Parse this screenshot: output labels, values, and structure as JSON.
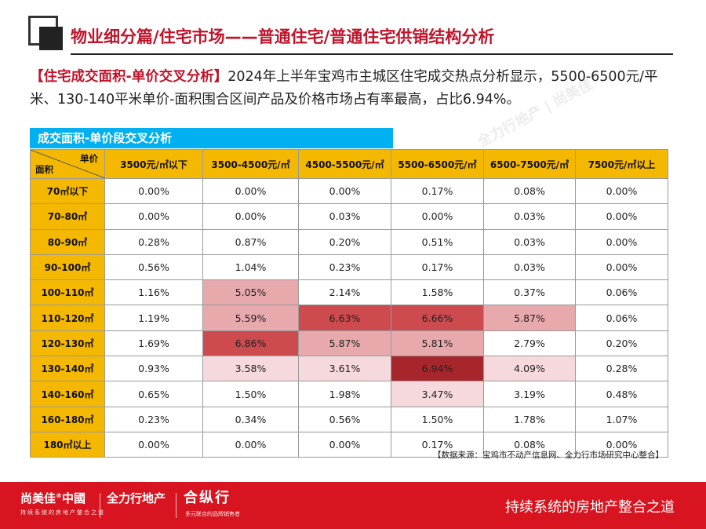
{
  "header": {
    "title": "物业细分篇/住宅市场——普通住宅/普通住宅供销结构分析"
  },
  "intro": {
    "tag": "【住宅成交面积-单价交叉分析】",
    "text": "2024年上半年宝鸡市主城区住宅成交热点分析显示，5500-6500元/平米、130-140平米单价-面积围合区间产品及价格市场占有率最高，占比6.94%。"
  },
  "table": {
    "banner": "成交面积-单价段交叉分析",
    "corner_top": "单价",
    "corner_bottom": "面积",
    "columns": [
      "3500元/㎡以下",
      "3500-4500元/㎡",
      "4500-5500元/㎡",
      "5500-6500元/㎡",
      "6500-7500元/㎡",
      "7500元/㎡以上"
    ],
    "rows": [
      {
        "label": "70㎡以下",
        "values": [
          "0.00%",
          "0.00%",
          "0.00%",
          "0.17%",
          "0.08%",
          "0.00%"
        ]
      },
      {
        "label": "70-80㎡",
        "values": [
          "0.00%",
          "0.00%",
          "0.03%",
          "0.00%",
          "0.03%",
          "0.00%"
        ]
      },
      {
        "label": "80-90㎡",
        "values": [
          "0.28%",
          "0.87%",
          "0.20%",
          "0.51%",
          "0.03%",
          "0.00%"
        ]
      },
      {
        "label": "90-100㎡",
        "values": [
          "0.56%",
          "1.04%",
          "0.23%",
          "0.17%",
          "0.03%",
          "0.00%"
        ]
      },
      {
        "label": "100-110㎡",
        "values": [
          "1.16%",
          "5.05%",
          "2.14%",
          "1.58%",
          "0.37%",
          "0.06%"
        ]
      },
      {
        "label": "110-120㎡",
        "values": [
          "1.19%",
          "5.59%",
          "6.63%",
          "6.66%",
          "5.87%",
          "0.06%"
        ]
      },
      {
        "label": "120-130㎡",
        "values": [
          "1.69%",
          "6.86%",
          "5.87%",
          "5.81%",
          "2.79%",
          "0.20%"
        ]
      },
      {
        "label": "130-140㎡",
        "values": [
          "0.93%",
          "3.58%",
          "3.61%",
          "6.94%",
          "4.09%",
          "0.28%"
        ]
      },
      {
        "label": "140-160㎡",
        "values": [
          "0.65%",
          "1.50%",
          "1.98%",
          "3.47%",
          "3.19%",
          "0.48%"
        ]
      },
      {
        "label": "160-180㎡",
        "values": [
          "0.23%",
          "0.34%",
          "0.56%",
          "1.50%",
          "1.78%",
          "1.07%"
        ]
      },
      {
        "label": "180㎡以上",
        "values": [
          "0.00%",
          "0.00%",
          "0.00%",
          "0.17%",
          "0.08%",
          "0.00%"
        ]
      }
    ],
    "highlight_colors": {
      "light": "#f6d9dc",
      "medium": "#e8a9ad",
      "strong": "#cd4a4f",
      "darkest": "#a7262c"
    }
  },
  "source": "【数据来源：宝鸡市不动产信息网、全力行市场研究中心整合】",
  "footer": {
    "brand1": "尚美佳",
    "brand1_mark": "®",
    "brand1_suffix": "中國",
    "brand1_sub": "持续系统的房地产整合之道",
    "brand2": "全力行地产",
    "brand3": "合纵行",
    "brand3_sub": "多元联合的品牌销售者",
    "slogan": "持续系统的房地产整合之道"
  },
  "colors": {
    "accent_red": "#c0142b",
    "footer_red": "#d7141f",
    "header_yellow": "#f5b800",
    "banner_blue": "#00b0f0"
  }
}
